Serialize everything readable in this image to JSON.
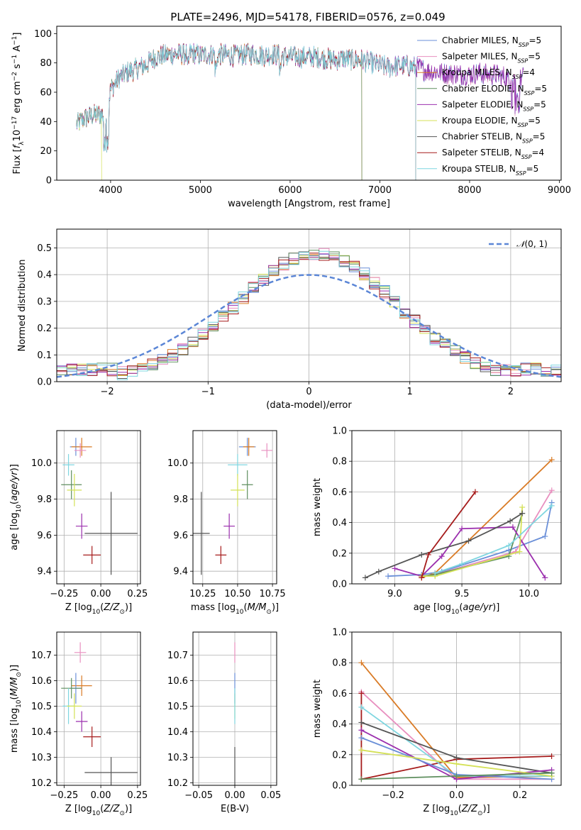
{
  "title": "PLATE=2496, MJD=54178, FIBERID=0576, z=0.049",
  "colors": {
    "Chabrier MILES": "#6a8fd8",
    "Salpeter MILES": "#e88fbf",
    "Kroupa MILES": "#d97b26",
    "Chabrier ELODIE": "#5f8f5f",
    "Salpeter ELODIE": "#9b2fae",
    "Kroupa ELODIE": "#d4e157",
    "Chabrier STELIB": "#555555",
    "Salpeter STELIB": "#a61c1c",
    "Kroupa STELIB": "#7fd6e0",
    "normal": "#5b86d6"
  },
  "chart_data": [
    {
      "id": "spectrum",
      "type": "line",
      "xlabel": "wavelength [Angstrom, rest frame]",
      "ylabel": "Flux [f_λ 10^-17 erg cm^-2 s^-1 A^-1]",
      "xlim": [
        3400,
        9020
      ],
      "ylim": [
        0,
        105
      ],
      "xticks": [
        4000,
        5000,
        6000,
        7000,
        8000,
        9000
      ],
      "yticks": [
        0,
        20,
        40,
        60,
        80,
        100
      ],
      "legend_position": "top-right",
      "series": [
        {
          "name": "Chabrier MILES",
          "nssp": "5"
        },
        {
          "name": "Salpeter MILES",
          "nssp": "5"
        },
        {
          "name": "Kroupa MILES",
          "nssp": "4"
        },
        {
          "name": "Chabrier ELODIE",
          "nssp": "5"
        },
        {
          "name": "Salpeter ELODIE",
          "nssp": "5"
        },
        {
          "name": "Kroupa ELODIE",
          "nssp": "5"
        },
        {
          "name": "Chabrier STELIB",
          "nssp": "5"
        },
        {
          "name": "Salpeter STELIB",
          "nssp": "4"
        },
        {
          "name": "Kroupa STELIB",
          "nssp": "5"
        }
      ],
      "continuum": {
        "x": [
          3620,
          3700,
          3800,
          3900,
          3950,
          4000,
          4100,
          4200,
          4300,
          4400,
          4500,
          4600,
          4700,
          4800,
          4900,
          5000,
          5100,
          5200,
          5300,
          5400,
          5500,
          5600,
          5700,
          5800,
          5900,
          6000,
          6100,
          6200,
          6300,
          6400,
          6500,
          6600,
          6700,
          6800,
          6900,
          7000,
          7100,
          7200,
          7300,
          7400,
          7500,
          7600,
          7700,
          7800,
          7900,
          8000,
          8100,
          8200,
          8300,
          8400,
          8500,
          8600
        ],
        "y": [
          38,
          42,
          44,
          45,
          44,
          62,
          70,
          74,
          76,
          79,
          84,
          85,
          86,
          86,
          87,
          85,
          86,
          86,
          85,
          85,
          86,
          86,
          85,
          86,
          85,
          84,
          84,
          84,
          84,
          83,
          82,
          83,
          82,
          82,
          80,
          78,
          77,
          78,
          78,
          77,
          75,
          74,
          73,
          73,
          72,
          72,
          73,
          72,
          72,
          70,
          66,
          70
        ]
      },
      "truncations": [
        {
          "series": "Kroupa ELODIE",
          "end": 3900
        },
        {
          "series": "Kroupa MILES",
          "end": 6800
        },
        {
          "series": "Chabrier ELODIE",
          "end": 6800
        },
        {
          "series": "Salpeter STELIB",
          "end": 7400
        },
        {
          "series": "Kroupa STELIB",
          "end": 7400
        }
      ]
    },
    {
      "id": "residuals",
      "type": "step-histogram",
      "xlabel": "(data-model)/error",
      "ylabel": "Normed distribution",
      "xlim": [
        -2.5,
        2.5
      ],
      "ylim": [
        0,
        0.57
      ],
      "xticks": [
        -2,
        -1,
        0,
        1,
        2
      ],
      "yticks": [
        0.0,
        0.1,
        0.2,
        0.3,
        0.4,
        0.5
      ],
      "grid": true,
      "bin_width": 0.1,
      "reference_curve": {
        "name": "N(0,1)",
        "mean": 0,
        "sigma": 1
      }
    },
    {
      "id": "age-vs-Z",
      "type": "errorbar",
      "xlabel": "Z [log10(Z/Z_sun)]",
      "ylabel": "age [log10(age/yr)]",
      "xlim": [
        -0.3,
        0.27
      ],
      "ylim": [
        9.33,
        10.18
      ],
      "xticks": [
        -0.25,
        0.0,
        0.25
      ],
      "yticks": [
        9.4,
        9.6,
        9.8,
        10.0
      ],
      "grid": true,
      "points": [
        {
          "series": "Chabrier MILES",
          "x": -0.17,
          "xerr": 0.04,
          "y": 10.09,
          "yerr": 0.05
        },
        {
          "series": "Kroupa MILES",
          "x": -0.13,
          "xerr": 0.07,
          "y": 10.09,
          "yerr": 0.05
        },
        {
          "series": "Salpeter MILES",
          "x": -0.14,
          "xerr": 0.04,
          "y": 10.07,
          "yerr": 0.04
        },
        {
          "series": "Kroupa STELIB",
          "x": -0.22,
          "xerr": 0.04,
          "y": 9.99,
          "yerr": 0.06
        },
        {
          "series": "Chabrier ELODIE",
          "x": -0.2,
          "xerr": 0.07,
          "y": 9.88,
          "yerr": 0.08
        },
        {
          "series": "Kroupa ELODIE",
          "x": -0.18,
          "xerr": 0.05,
          "y": 9.85,
          "yerr": 0.09
        },
        {
          "series": "Salpeter ELODIE",
          "x": -0.13,
          "xerr": 0.04,
          "y": 9.65,
          "yerr": 0.07
        },
        {
          "series": "Chabrier STELIB",
          "x": 0.07,
          "xerr": 0.18,
          "y": 9.61,
          "yerr": 0.23
        },
        {
          "series": "Salpeter STELIB",
          "x": -0.06,
          "xerr": 0.06,
          "y": 9.49,
          "yerr": 0.05
        }
      ]
    },
    {
      "id": "age-vs-mass",
      "type": "errorbar",
      "xlabel": "mass [log10(M/M_sun)]",
      "xlim": [
        10.18,
        10.78
      ],
      "ylim": [
        9.33,
        10.18
      ],
      "xticks": [
        10.25,
        10.5,
        10.75
      ],
      "yticks": [
        9.4,
        9.6,
        9.8,
        10.0
      ],
      "grid": true,
      "points": [
        {
          "series": "Chabrier MILES",
          "x": 10.57,
          "xerr": 0.06,
          "y": 10.09,
          "yerr": 0.05
        },
        {
          "series": "Kroupa MILES",
          "x": 10.58,
          "xerr": 0.04,
          "y": 10.09,
          "yerr": 0.05
        },
        {
          "series": "Salpeter MILES",
          "x": 10.71,
          "xerr": 0.04,
          "y": 10.07,
          "yerr": 0.04
        },
        {
          "series": "Kroupa STELIB",
          "x": 10.5,
          "xerr": 0.07,
          "y": 9.99,
          "yerr": 0.06
        },
        {
          "series": "Chabrier ELODIE",
          "x": 10.57,
          "xerr": 0.04,
          "y": 9.88,
          "yerr": 0.08
        },
        {
          "series": "Kroupa ELODIE",
          "x": 10.5,
          "xerr": 0.05,
          "y": 9.85,
          "yerr": 0.09
        },
        {
          "series": "Salpeter ELODIE",
          "x": 10.44,
          "xerr": 0.04,
          "y": 9.65,
          "yerr": 0.07
        },
        {
          "series": "Chabrier STELIB",
          "x": 10.24,
          "xerr": 0.06,
          "y": 9.61,
          "yerr": 0.23
        },
        {
          "series": "Salpeter STELIB",
          "x": 10.38,
          "xerr": 0.04,
          "y": 9.49,
          "yerr": 0.05
        }
      ]
    },
    {
      "id": "mass-weight-vs-age",
      "type": "line",
      "xlabel": "age [log10(age/yr)]",
      "ylabel": "mass weight",
      "xlim": [
        8.68,
        10.24
      ],
      "ylim": [
        0,
        1
      ],
      "xticks": [
        9.0,
        9.5,
        10.0
      ],
      "yticks": [
        0.0,
        0.2,
        0.4,
        0.6,
        0.8,
        1.0
      ],
      "grid": true,
      "series": [
        {
          "name": "Chabrier MILES",
          "x": [
            8.95,
            9.2,
            9.35,
            9.85,
            10.12,
            10.17
          ],
          "y": [
            0.05,
            0.06,
            0.08,
            0.22,
            0.31,
            0.53
          ]
        },
        {
          "name": "Salpeter MILES",
          "x": [
            9.2,
            9.3,
            9.9,
            10.17
          ],
          "y": [
            0.05,
            0.06,
            0.21,
            0.61
          ]
        },
        {
          "name": "Kroupa MILES",
          "x": [
            9.2,
            9.3,
            10.17
          ],
          "y": [
            0.04,
            0.07,
            0.81
          ]
        },
        {
          "name": "Chabrier ELODIE",
          "x": [
            9.2,
            9.3,
            9.85,
            9.95
          ],
          "y": [
            0.05,
            0.06,
            0.18,
            0.46
          ]
        },
        {
          "name": "Salpeter ELODIE",
          "x": [
            9.0,
            9.2,
            9.35,
            9.5,
            9.88,
            10.12
          ],
          "y": [
            0.1,
            0.05,
            0.18,
            0.36,
            0.37,
            0.04
          ]
        },
        {
          "name": "Kroupa ELODIE",
          "x": [
            9.2,
            9.3,
            9.93,
            9.95
          ],
          "y": [
            0.05,
            0.05,
            0.21,
            0.5
          ]
        },
        {
          "name": "Chabrier STELIB",
          "x": [
            8.78,
            8.88,
            9.2,
            9.55,
            9.86,
            9.95
          ],
          "y": [
            0.04,
            0.08,
            0.19,
            0.28,
            0.41,
            0.46
          ]
        },
        {
          "name": "Salpeter STELIB",
          "x": [
            9.2,
            9.25,
            9.6
          ],
          "y": [
            0.04,
            0.19,
            0.6
          ]
        },
        {
          "name": "Kroupa STELIB",
          "x": [
            9.3,
            9.5,
            9.85,
            10.17
          ],
          "y": [
            0.07,
            0.13,
            0.25,
            0.51
          ]
        }
      ]
    },
    {
      "id": "mass-vs-Z",
      "type": "errorbar",
      "xlabel": "Z [log10(Z/Z_sun)]",
      "ylabel": "mass [log10(M/M_sun)]",
      "xlim": [
        -0.3,
        0.27
      ],
      "ylim": [
        10.19,
        10.79
      ],
      "xticks": [
        -0.25,
        0.0,
        0.25
      ],
      "yticks": [
        10.2,
        10.3,
        10.4,
        10.5,
        10.6,
        10.7
      ],
      "grid": true,
      "points": [
        {
          "series": "Salpeter MILES",
          "x": -0.14,
          "xerr": 0.04,
          "y": 10.71,
          "yerr": 0.04
        },
        {
          "series": "Kroupa MILES",
          "x": -0.13,
          "xerr": 0.07,
          "y": 10.58,
          "yerr": 0.04
        },
        {
          "series": "Chabrier MILES",
          "x": -0.17,
          "xerr": 0.04,
          "y": 10.57,
          "yerr": 0.06
        },
        {
          "series": "Chabrier ELODIE",
          "x": -0.2,
          "xerr": 0.07,
          "y": 10.57,
          "yerr": 0.04
        },
        {
          "series": "Kroupa STELIB",
          "x": -0.22,
          "xerr": 0.04,
          "y": 10.5,
          "yerr": 0.07
        },
        {
          "series": "Kroupa ELODIE",
          "x": -0.18,
          "xerr": 0.05,
          "y": 10.5,
          "yerr": 0.05
        },
        {
          "series": "Salpeter ELODIE",
          "x": -0.13,
          "xerr": 0.04,
          "y": 10.44,
          "yerr": 0.04
        },
        {
          "series": "Salpeter STELIB",
          "x": -0.06,
          "xerr": 0.06,
          "y": 10.38,
          "yerr": 0.04
        },
        {
          "series": "Chabrier STELIB",
          "x": 0.07,
          "xerr": 0.18,
          "y": 10.24,
          "yerr": 0.06
        }
      ]
    },
    {
      "id": "mass-vs-ebv",
      "type": "errorbar",
      "xlabel": "E(B-V)",
      "xlim": [
        -0.058,
        0.058
      ],
      "ylim": [
        10.19,
        10.79
      ],
      "xticks": [
        -0.05,
        0.0,
        0.05
      ],
      "xtick_labels": [
        "−0.05",
        "0.00",
        "0.05"
      ],
      "yticks": [
        10.2,
        10.3,
        10.4,
        10.5,
        10.6,
        10.7
      ],
      "grid": true,
      "points": [
        {
          "series": "Salpeter MILES",
          "x": 0.0,
          "y": 10.71,
          "yerr": 0.04
        },
        {
          "series": "Chabrier MILES",
          "x": 0.0,
          "y": 10.57,
          "yerr": 0.06
        },
        {
          "series": "Kroupa ELODIE",
          "x": 0.0,
          "y": 10.5,
          "yerr": 0.05
        },
        {
          "series": "Kroupa STELIB",
          "x": 0.0,
          "y": 10.5,
          "yerr": 0.07
        },
        {
          "series": "Chabrier STELIB",
          "x": 0.0,
          "y": 10.24,
          "yerr": 0.1
        }
      ]
    },
    {
      "id": "mass-weight-vs-Z",
      "type": "line",
      "xlabel": "Z [log10(Z/Z_sun)]",
      "ylabel": "mass weight",
      "xlim": [
        -0.33,
        0.33
      ],
      "ylim": [
        0,
        1
      ],
      "xticks": [
        -0.2,
        0.0,
        0.2
      ],
      "xtick_labels": [
        "−0.2",
        "0.0",
        "0.2"
      ],
      "yticks": [
        0.0,
        0.2,
        0.4,
        0.6,
        0.8,
        1.0
      ],
      "grid": true,
      "series": [
        {
          "name": "Kroupa MILES",
          "x": [
            -0.3,
            0.0,
            0.3
          ],
          "y": [
            0.8,
            0.05,
            0.06
          ]
        },
        {
          "name": "Salpeter MILES",
          "x": [
            -0.3,
            0.0,
            0.3
          ],
          "y": [
            0.61,
            0.04,
            0.04
          ]
        },
        {
          "name": "Salpeter STELIB",
          "x": [
            -0.3,
            -0.3,
            0.0,
            0.3
          ],
          "y": [
            0.6,
            0.04,
            0.17,
            0.19
          ]
        },
        {
          "name": "Kroupa STELIB",
          "x": [
            -0.3,
            0.0,
            0.3
          ],
          "y": [
            0.51,
            0.06,
            0.06
          ]
        },
        {
          "name": "Chabrier STELIB",
          "x": [
            -0.3,
            0.0,
            0.3
          ],
          "y": [
            0.41,
            0.18,
            0.08
          ]
        },
        {
          "name": "Salpeter ELODIE",
          "x": [
            -0.3,
            0.0,
            0.3
          ],
          "y": [
            0.36,
            0.04,
            0.1
          ]
        },
        {
          "name": "Chabrier MILES",
          "x": [
            -0.3,
            0.0,
            0.3
          ],
          "y": [
            0.31,
            0.07,
            0.04
          ]
        },
        {
          "name": "Kroupa ELODIE",
          "x": [
            -0.3,
            0.0,
            0.3
          ],
          "y": [
            0.23,
            0.14,
            0.06
          ]
        },
        {
          "name": "Chabrier ELODIE",
          "x": [
            -0.3,
            0.0,
            0.3
          ],
          "y": [
            0.04,
            0.06,
            0.08
          ]
        }
      ]
    }
  ]
}
